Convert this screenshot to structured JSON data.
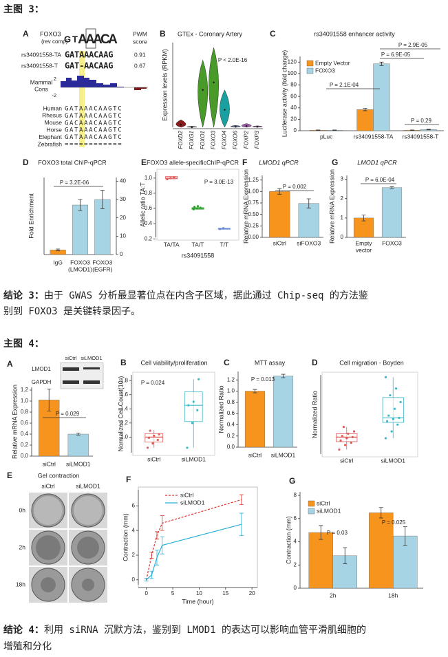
{
  "heading3": "主图 3：",
  "figure3": {
    "A": {
      "type": "alignment",
      "letter": "A",
      "motif": "FOXO3",
      "motif_note": "(rev comp)",
      "pwm_label": [
        "PWM",
        "score"
      ],
      "logo": [
        "G",
        "T",
        "A",
        "A",
        "A",
        "C",
        "A"
      ],
      "alleles": [
        {
          "name": "rs34091558-TA",
          "sequence": "GATAAACAAG",
          "score": 0.91
        },
        {
          "name": "rs34091558-T",
          "sequence": "GAT-AACAAG",
          "score": 0.67
        }
      ],
      "cons_label": [
        "Mammal",
        "Cons"
      ],
      "cons_ticks": [
        2,
        -2
      ],
      "species": [
        {
          "name": "Human",
          "sequence": "GATAAACAAGTC"
        },
        {
          "name": "Rhesus",
          "sequence": "GATAAACAAGTC"
        },
        {
          "name": "Mouse",
          "sequence": "GACAAACAAGTC"
        },
        {
          "name": "Horse",
          "sequence": "GATAAACAAGTC"
        },
        {
          "name": "Elephant",
          "sequence": "GATAAACAAGTC"
        },
        {
          "name": "Zebrafish",
          "sequence": "============"
        }
      ]
    },
    "B": {
      "type": "violin",
      "letter": "B",
      "title": "GTEx - Coronary Artery",
      "ylabel": "Expression levels (RPKM)",
      "annotations": [
        "P < 2.0E-16"
      ],
      "categories": [
        "FOXD2",
        "FOXG1",
        "FOXO1",
        "FOXO3",
        "FOXO4",
        "FOXO6",
        "FOXP2",
        "FOXP3"
      ],
      "medians": [
        1,
        0,
        15,
        18,
        7,
        0.2,
        0.5,
        0.2
      ],
      "maxima": [
        3,
        0.5,
        27,
        32,
        15,
        0.8,
        1.5,
        0.6
      ],
      "colors": [
        "#8b1a1a",
        "#888888",
        "#4a9a2a",
        "#4a9a2a",
        "#1aa0a0",
        "#6a7a9a",
        "#9a5aa8",
        "#9a5aa8"
      ],
      "ylim": [
        0,
        34
      ]
    },
    "C": {
      "type": "bar",
      "letter": "C",
      "title": "rs34091558 enhancer activity",
      "ylabel": "Luciferase activity (fold change)",
      "categories": [
        "pLuc",
        "rs34091558-TA",
        "rs34091558-T"
      ],
      "series": [
        {
          "name": "Empty Vector",
          "color": "#f7941d",
          "values": [
            1,
            37,
            1
          ],
          "errors": [
            0.3,
            2,
            0.3
          ]
        },
        {
          "name": "FOXO3",
          "color": "#a6d4e4",
          "values": [
            1,
            117,
            2
          ],
          "errors": [
            0.3,
            3,
            0.5
          ]
        }
      ],
      "ylim": [
        0,
        130
      ],
      "yticks": [
        0,
        20,
        40,
        60,
        80,
        100,
        120
      ],
      "annotations": [
        "P = 2.9E-05",
        "P = 6.9E-05",
        "P = 2.1E-04",
        "P = 0.29"
      ],
      "legend": "top-left"
    },
    "D": {
      "type": "bar",
      "letter": "D",
      "title": "FOXO3 total ChIP-qPCR",
      "ylabel": "Fold Enrichment",
      "categories": [
        [
          "IgG"
        ],
        [
          "FOXO3",
          "(LMOD1)"
        ],
        [
          "FOXO3",
          "(EGFR)"
        ]
      ],
      "series": [
        {
          "colors": [
            "#f7941d",
            "#a6d4e4",
            "#a6d4e4"
          ],
          "values": [
            2.5,
            27,
            30
          ],
          "errors": [
            0.5,
            3,
            5
          ]
        }
      ],
      "ylim": [
        0,
        42
      ],
      "yticks": [
        0,
        10,
        20,
        30,
        40
      ],
      "axis_side": "right",
      "annotations": [
        "P = 3.2E-06"
      ]
    },
    "E": {
      "type": "box",
      "letter": "E",
      "title": "FOXO3 allele-specificChIP-qPCR",
      "ylabel": "Allelic ratio TA:T",
      "xlabel": "rs34091558",
      "categories": [
        "TA/TA",
        "TA/T",
        "T/T"
      ],
      "groups": [
        {
          "color": "#e05a5a",
          "q1": 0.99,
          "median": 1.0,
          "q3": 1.02,
          "points": [
            0.985,
            1.0,
            1.01
          ]
        },
        {
          "color": "#2aa02a",
          "q1": 0.59,
          "median": 0.6,
          "q3": 0.61,
          "points": [
            0.59,
            0.6,
            0.61,
            0.62,
            0.63
          ]
        },
        {
          "color": "#6a8ad8",
          "q1": 0.33,
          "median": 0.335,
          "q3": 0.34,
          "points": [
            0.33,
            0.34
          ]
        }
      ],
      "ylim": [
        0.22,
        1.08
      ],
      "yticks": [
        0.2,
        0.4,
        0.6,
        0.8,
        {
          "value": 1,
          "label": "1.0"
        }
      ],
      "annotations": [
        "P = 3.0E-13"
      ]
    },
    "F": {
      "type": "bar",
      "letter": "F",
      "title": "LMOD1 qPCR",
      "ylabel": "Relative mRNA Expression",
      "categories": [
        "siCtrl",
        "siFOXO3"
      ],
      "series": [
        {
          "colors": [
            "#f7941d",
            "#a6d4e4"
          ],
          "values": [
            1.0,
            0.74
          ],
          "errors": [
            0.06,
            0.1
          ]
        }
      ],
      "ylim": [
        0,
        1.35
      ],
      "yticks": [
        {
          "value": 0,
          "label": "0.00"
        },
        0.25,
        {
          "value": 0.5,
          "label": "0.50"
        },
        0.75,
        {
          "value": 1,
          "label": "1.00"
        },
        1.25
      ],
      "annotations": [
        "P = 0.002"
      ]
    },
    "G": {
      "type": "bar",
      "letter": "G",
      "title": "LMOD1 qPCR",
      "ylabel": "Relative mRNA Expression",
      "categories": [
        [
          "Empty",
          "vector"
        ],
        [
          "FOXO3"
        ]
      ],
      "series": [
        {
          "colors": [
            "#f7941d",
            "#a6d4e4"
          ],
          "values": [
            1.0,
            2.57
          ],
          "errors": [
            0.15,
            0.05
          ]
        }
      ],
      "ylim": [
        0,
        3.2
      ],
      "yticks": [
        0,
        1,
        2,
        3
      ],
      "annotations": [
        "P = 6.0E-04"
      ]
    }
  },
  "conclusion3": {
    "label": "结论 3：",
    "text": [
      "由于 GWAS 分析最显著位点在内含子区域，据此通过 Chip-seq 的方法鉴",
      "别到 FOXO3 是关键转录因子。"
    ]
  },
  "heading4": "主图 4：",
  "figure4": {
    "A": {
      "type": "bar",
      "letter": "A",
      "ylabel": "Relative mRNA Expression",
      "blot": {
        "bands": [
          "LMOD1",
          "GAPDH"
        ],
        "lanes": [
          "siCtrl",
          "siLMOD1"
        ]
      },
      "categories": [
        "siCtrl",
        "siLMOD1"
      ],
      "series": [
        {
          "colors": [
            "#f7941d",
            "#a6d4e4"
          ],
          "values": [
            1.02,
            0.4
          ],
          "errors": [
            0.2,
            0.02
          ]
        }
      ],
      "ylim": [
        0,
        1.25
      ],
      "yticks": [
        {
          "value": 0,
          "label": "0.0"
        },
        0.2,
        0.4,
        0.6,
        0.8,
        {
          "value": 1,
          "label": "1.0"
        },
        1.2
      ],
      "annotations": [
        "P = 0.029"
      ]
    },
    "B": {
      "type": "box",
      "letter": "B",
      "title": "Cell viability/proliferation",
      "ylabel": "Normalized Cell Count(10⁵)",
      "categories": [
        "siCtrl",
        "siLMOD1"
      ],
      "groups": [
        {
          "color": "#e05a5a",
          "whisker": [
            0.85,
            1.1
          ],
          "q1": 0.93,
          "median": 1.0,
          "q3": 1.05,
          "points": [
            0.85,
            0.91,
            0.96,
            0.99,
            1.02,
            1.04,
            1.09
          ]
        },
        {
          "color": "#3ab8c8",
          "whisker": [
            0.85,
            1.82
          ],
          "q1": 1.22,
          "median": 1.45,
          "q3": 1.64,
          "points": [
            0.85,
            1.2,
            1.38,
            1.45,
            1.5,
            1.82
          ]
        }
      ],
      "ylim": [
        0.78,
        1.88
      ],
      "yticks": [
        {
          "value": 1,
          "label": "1.0"
        },
        1.2,
        1.4,
        1.6,
        1.8
      ],
      "annotations": [
        "P = 0.024"
      ]
    },
    "C": {
      "type": "bar",
      "letter": "C",
      "title": "MTT assay",
      "ylabel": "Normalized Ratio",
      "categories": [
        "siCtrl",
        "siLMOD1"
      ],
      "series": [
        {
          "colors": [
            "#f7941d",
            "#a6d4e4"
          ],
          "values": [
            1.0,
            1.27
          ],
          "errors": [
            0.03,
            0.03
          ]
        }
      ],
      "ylim": [
        0,
        1.35
      ],
      "yticks": [
        {
          "value": 0,
          "label": "0.0"
        },
        0.2,
        0.4,
        0.6,
        0.8,
        {
          "value": 1,
          "label": "1.0"
        },
        1.2
      ],
      "annotations": [
        "P = 0.013"
      ]
    },
    "D": {
      "type": "box",
      "letter": "D",
      "title": "Cell migration - Boyden",
      "ylabel": "Normalized Ratio",
      "categories": [
        "siCtrl",
        "siLMOD1"
      ],
      "groups": [
        {
          "color": "#e05a5a",
          "whisker": [
            0.5,
            1.5
          ],
          "q1": 0.85,
          "median": 1.05,
          "q3": 1.2,
          "points": [
            0.5,
            0.7,
            0.8,
            0.9,
            1.0,
            1.05,
            1.1,
            1.2,
            1.3,
            1.5
          ]
        },
        {
          "color": "#3ab8c8",
          "whisker": [
            1.0,
            3.7
          ],
          "q1": 1.7,
          "median": 1.9,
          "q3": 2.8,
          "points": [
            1.0,
            1.3,
            1.6,
            1.75,
            1.85,
            1.9,
            2.0,
            2.3,
            2.6,
            2.9,
            3.2,
            3.7
          ]
        }
      ],
      "ylim": [
        0.3,
        3.8
      ]
    },
    "E": {
      "type": "images",
      "letter": "E",
      "title": "Gel contraction",
      "columns": [
        "siCtrl",
        "siLMOD1"
      ],
      "rows": [
        "0h",
        "2h",
        "18h"
      ]
    },
    "F": {
      "type": "line",
      "letter": "F",
      "xlabel": "Time (hour)",
      "ylabel": "Contraction (mm)",
      "x": [
        0,
        1,
        2,
        3,
        18
      ],
      "series": [
        {
          "name": "siCtrl",
          "color": "#e0302a",
          "style": "dashed",
          "values": [
            0,
            2,
            3.6,
            4.6,
            6.5
          ],
          "errors": [
            0.1,
            0.25,
            0.3,
            0.6,
            0.4
          ]
        },
        {
          "name": "siLMOD1",
          "color": "#2ab0d8",
          "style": "solid",
          "values": [
            0,
            0.4,
            1.8,
            2.8,
            4.5
          ],
          "errors": [
            0.1,
            0.3,
            0.6,
            0.7,
            0.9
          ]
        }
      ],
      "xlim": [
        -1,
        20.5
      ],
      "xticks": [
        0,
        5,
        10,
        15,
        20
      ],
      "ylim": [
        -0.4,
        7.3
      ],
      "yticks": [
        0,
        2,
        4,
        6
      ],
      "legend": "top-left"
    },
    "G": {
      "type": "bar",
      "letter": "G",
      "ylabel": "Contraction (mm)",
      "categories": [
        "2h",
        "18h"
      ],
      "series": [
        {
          "name": "siCtrl",
          "color": "#f7941d",
          "values": [
            4.8,
            6.5
          ],
          "errors": [
            0.6,
            0.45
          ]
        },
        {
          "name": "siLMOD1",
          "color": "#a6d4e4",
          "values": [
            2.8,
            4.5
          ],
          "errors": [
            0.7,
            0.8
          ]
        }
      ],
      "ylim": [
        0,
        8.3
      ],
      "yticks": [
        0,
        2,
        4,
        6,
        8
      ],
      "annotations": [
        "P = 0.03",
        "P = 0.025"
      ],
      "legend": "top-left"
    }
  },
  "conclusion4": {
    "label": "结论 4：",
    "text": [
      "利用 siRNA 沉默方法，鉴别到 LMOD1 的表达可以影响血管平滑肌细胞的",
      "增殖和分化"
    ]
  }
}
